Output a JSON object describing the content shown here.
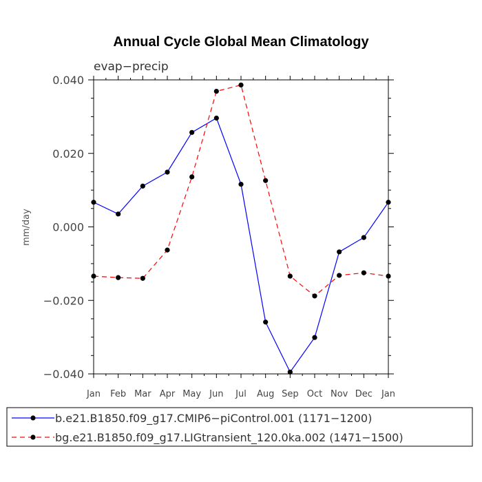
{
  "chart_data": {
    "type": "line",
    "title": "Annual Cycle Global Mean Climatology",
    "subtitle": "evap−precip",
    "ylabel": "mm/day",
    "xlabel": "",
    "categories": [
      "Jan",
      "Feb",
      "Mar",
      "Apr",
      "May",
      "Jun",
      "Jul",
      "Aug",
      "Sep",
      "Oct",
      "Nov",
      "Dec",
      "Jan"
    ],
    "ylim": [
      -0.04,
      0.04
    ],
    "yticks": [
      -0.04,
      -0.02,
      0.0,
      0.02,
      0.04
    ],
    "ytick_labels": [
      "−0.040",
      "−0.020",
      "0.000",
      "0.020",
      "0.040"
    ],
    "grid": false,
    "legend_position": "bottom",
    "series": [
      {
        "name": "b.e21.B1850.f09_g17.CMIP6−piControl.001 (1171−1200)",
        "color": "#0000ff",
        "dash": "solid",
        "values": [
          0.0067,
          0.0035,
          0.0111,
          0.0149,
          0.0257,
          0.0296,
          0.0116,
          -0.0259,
          -0.0395,
          -0.0301,
          -0.0068,
          -0.0029,
          0.0067
        ]
      },
      {
        "name": "bg.e21.B1850.f09_g17.LIGtransient_120.0ka.002 (1471−1500)",
        "color": "#ff0000",
        "dash": "dashed",
        "values": [
          -0.0134,
          -0.0138,
          -0.014,
          -0.0063,
          0.0136,
          0.0369,
          0.0386,
          0.0126,
          -0.0134,
          -0.0188,
          -0.0132,
          -0.0125,
          -0.0134
        ]
      }
    ]
  }
}
